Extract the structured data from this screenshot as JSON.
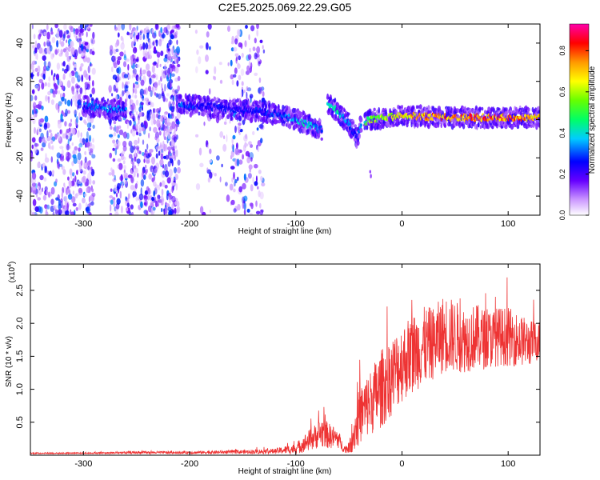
{
  "chart_data": [
    {
      "type": "heatmap",
      "title": "C2E5.2025.069.22.29.G05",
      "xlabel": "Height of straight line (km)",
      "ylabel": "Frequency (Hz)",
      "xlim": [
        -350,
        130
      ],
      "ylim": [
        -50,
        50
      ],
      "x_ticks": [
        -300,
        -200,
        -100,
        0,
        100
      ],
      "x_tick_labels": [
        "-300",
        "-200",
        "-100",
        "0",
        "100"
      ],
      "y_ticks": [
        -40,
        -20,
        0,
        20,
        40
      ],
      "y_tick_labels": [
        "-40",
        "-20",
        "0",
        "20",
        "40"
      ],
      "colorbar": {
        "label": "Normalized spectral amplitude",
        "range": [
          0.0,
          0.93
        ],
        "ticks": [
          0.0,
          0.2,
          0.4,
          0.6,
          0.8
        ],
        "tick_labels": [
          "0.0",
          "0.2",
          "0.4",
          "0.6",
          "0.8"
        ],
        "colors": [
          "#ffffff",
          "#cc99ff",
          "#6600ff",
          "#0000ff",
          "#00ccff",
          "#00ff66",
          "#66ff00",
          "#ffff00",
          "#ff9900",
          "#ff0000",
          "#ff00aa"
        ]
      },
      "trace": {
        "description_values": "dominant frequency ridge (km, Hz)",
        "x": [
          -300,
          -280,
          -260,
          -210,
          -190,
          -170,
          -150,
          -130,
          -110,
          -90,
          -75,
          -70,
          -60,
          -50,
          -42,
          -38,
          -30,
          0,
          50,
          100,
          130
        ],
        "y": [
          7,
          6,
          5,
          8,
          7,
          6,
          5,
          4,
          2,
          -2,
          -6,
          8,
          4,
          -2,
          -10,
          -2,
          0,
          2,
          1,
          1,
          1
        ],
        "amplitude": [
          0.35,
          0.38,
          0.35,
          0.35,
          0.3,
          0.3,
          0.3,
          0.3,
          0.35,
          0.45,
          0.35,
          0.5,
          0.45,
          0.35,
          0.3,
          0.45,
          0.6,
          0.75,
          0.85,
          0.85,
          0.8
        ]
      },
      "noise_bands": [
        {
          "from": -350,
          "to": -305,
          "density": "high"
        },
        {
          "from": -305,
          "to": -290,
          "density": "medium"
        },
        {
          "from": -275,
          "to": -255,
          "density": "medium"
        },
        {
          "from": -255,
          "to": -220,
          "density": "high"
        },
        {
          "from": -220,
          "to": -210,
          "density": "medium"
        },
        {
          "from": -195,
          "to": -160,
          "density": "low"
        },
        {
          "from": -160,
          "to": -130,
          "density": "medium"
        }
      ]
    },
    {
      "type": "line",
      "xlabel": "Height of straight line (km)",
      "ylabel": "SNR (10 * v/v)",
      "y_multiplier_label": "(x10",
      "y_multiplier_exp": "4",
      "y_multiplier_close": ")",
      "xlim": [
        -350,
        130
      ],
      "ylim": [
        0,
        2.9
      ],
      "x_ticks": [
        -300,
        -200,
        -100,
        0,
        100
      ],
      "x_tick_labels": [
        "-300",
        "-200",
        "-100",
        "0",
        "100"
      ],
      "y_ticks": [
        0.5,
        1.0,
        1.5,
        2.0,
        2.5
      ],
      "y_tick_labels": [
        "0.5",
        "1.0",
        "1.5",
        "2.0",
        "2.5"
      ],
      "color": "#ee3333",
      "series": [
        {
          "name": "SNR",
          "x": [
            -350,
            -300,
            -250,
            -200,
            -150,
            -120,
            -100,
            -90,
            -80,
            -75,
            -70,
            -60,
            -55,
            -50,
            -45,
            -40,
            -30,
            -20,
            -10,
            0,
            10,
            20,
            30,
            40,
            50,
            60,
            70,
            80,
            90,
            100,
            110,
            120,
            130
          ],
          "y": [
            0.03,
            0.03,
            0.04,
            0.04,
            0.05,
            0.06,
            0.1,
            0.2,
            0.3,
            0.35,
            0.3,
            0.25,
            0.1,
            0.1,
            0.35,
            0.6,
            0.8,
            1.0,
            1.2,
            1.4,
            1.55,
            1.65,
            1.7,
            1.85,
            1.8,
            1.75,
            1.8,
            1.75,
            1.8,
            1.8,
            1.75,
            1.7,
            1.75
          ],
          "spread": [
            0.01,
            0.01,
            0.02,
            0.02,
            0.03,
            0.04,
            0.08,
            0.15,
            0.2,
            0.25,
            0.2,
            0.15,
            0.05,
            0.08,
            0.3,
            0.45,
            0.5,
            0.6,
            0.6,
            0.6,
            0.6,
            0.6,
            0.55,
            0.6,
            0.55,
            0.5,
            0.5,
            0.45,
            0.45,
            0.45,
            0.4,
            0.35,
            0.3
          ]
        }
      ]
    }
  ]
}
